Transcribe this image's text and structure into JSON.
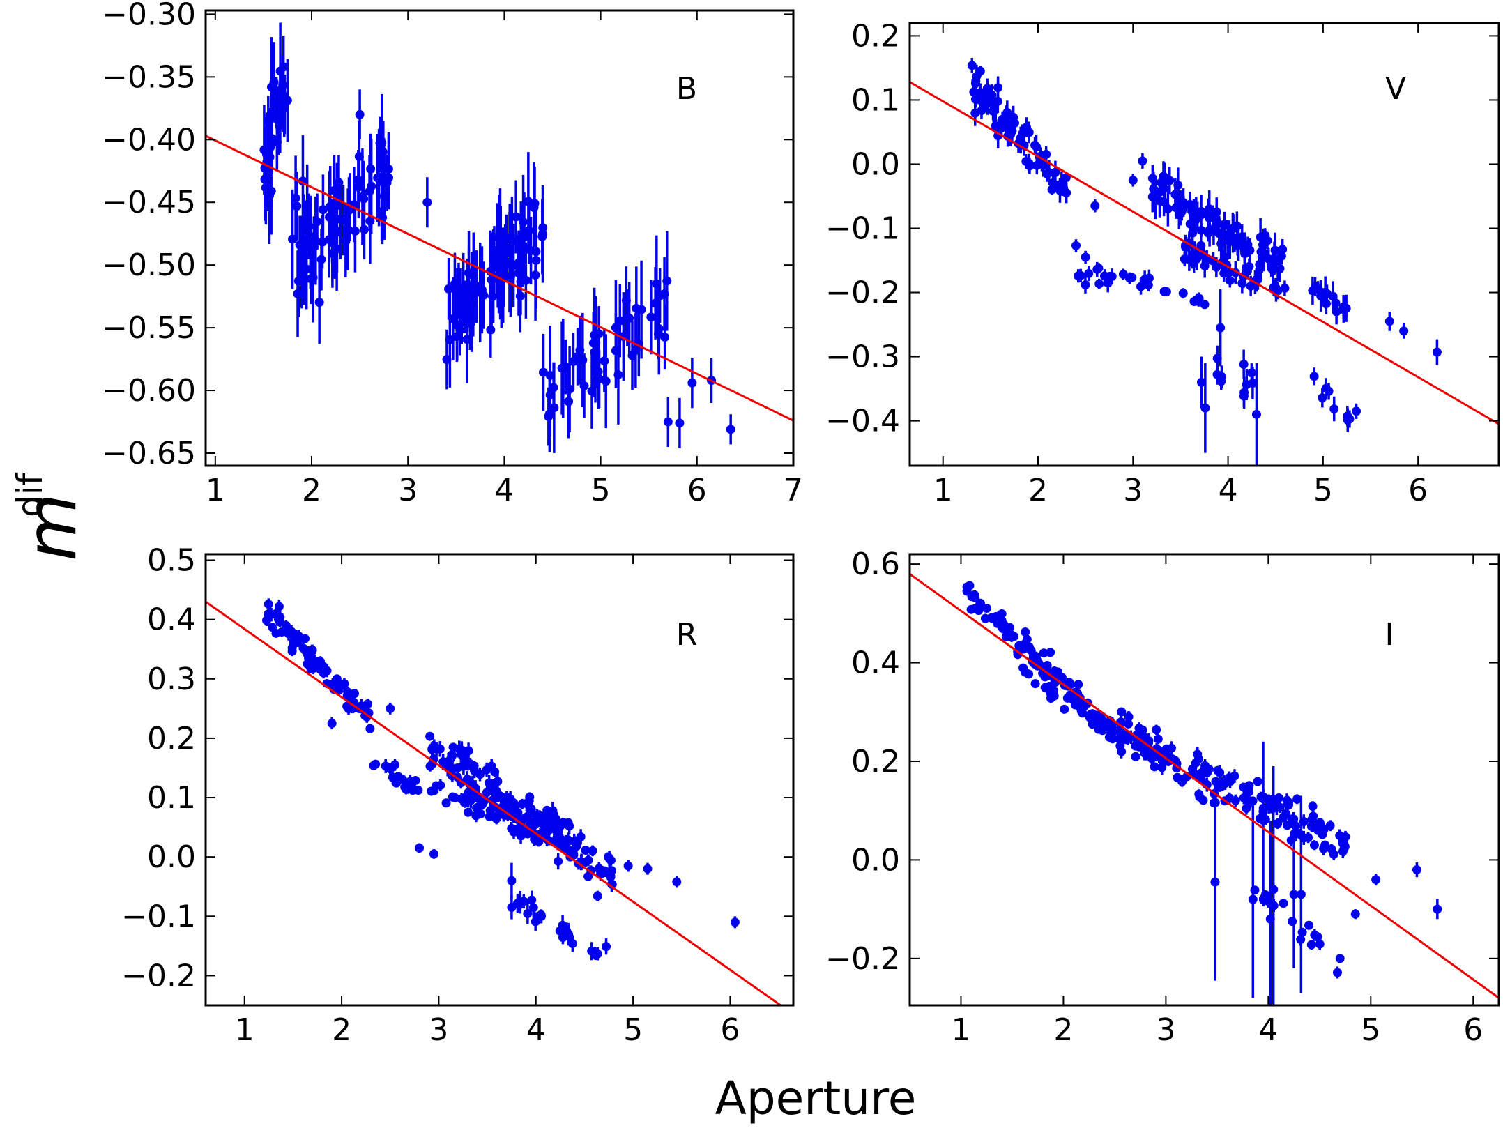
{
  "figure": {
    "xlabel": "Aperture",
    "ylabel": "m",
    "ylabel_superscript": "dif"
  },
  "colors": {
    "points": "#0000ee",
    "fit": "#ee0000",
    "axes": "#000000",
    "background": "#ffffff"
  },
  "chart_data": [
    {
      "type": "scatter",
      "band": "B",
      "xlim": [
        0.9,
        7.0
      ],
      "ylim": [
        -0.66,
        -0.297
      ],
      "xticks": [
        1,
        2,
        3,
        4,
        5,
        6,
        7
      ],
      "xtick_labels": [
        "1",
        "2",
        "3",
        "4",
        "5",
        "6",
        "7"
      ],
      "yticks": [
        -0.65,
        -0.6,
        -0.55,
        -0.5,
        -0.45,
        -0.4,
        -0.35,
        -0.3
      ],
      "ytick_labels": [
        "−0.65",
        "−0.60",
        "−0.55",
        "−0.50",
        "−0.45",
        "−0.40",
        "−0.35",
        "−0.30"
      ],
      "fit": {
        "x": [
          0.9,
          7.0
        ],
        "y": [
          -0.397,
          -0.624
        ]
      },
      "clusters": [
        {
          "x": [
            1.5,
            1.75
          ],
          "y": [
            -0.43,
            -0.34
          ],
          "n": 28,
          "err": [
            0.02,
            0.04
          ],
          "spread": 0.03
        },
        {
          "x": [
            1.8,
            2.8
          ],
          "y": [
            -0.5,
            -0.43
          ],
          "n": 70,
          "err": [
            0.02,
            0.04
          ],
          "spread": 0.03
        },
        {
          "x": [
            3.4,
            4.4
          ],
          "y": [
            -0.55,
            -0.47
          ],
          "n": 80,
          "err": [
            0.02,
            0.04
          ],
          "spread": 0.03
        },
        {
          "x": [
            4.4,
            5.7
          ],
          "y": [
            -0.6,
            -0.53
          ],
          "n": 50,
          "err": [
            0.02,
            0.04
          ],
          "spread": 0.025
        }
      ],
      "points": [
        {
          "x": 3.2,
          "y": -0.45,
          "err": 0.02
        },
        {
          "x": 2.5,
          "y": -0.38,
          "err": 0.02
        },
        {
          "x": 1.55,
          "y": -0.385,
          "err": 0.02
        },
        {
          "x": 6.35,
          "y": -0.631,
          "err": 0.012
        },
        {
          "x": 6.15,
          "y": -0.592,
          "err": 0.018
        },
        {
          "x": 5.95,
          "y": -0.594,
          "err": 0.02
        },
        {
          "x": 5.82,
          "y": -0.626,
          "err": 0.02
        },
        {
          "x": 5.7,
          "y": -0.625,
          "err": 0.02
        },
        {
          "x": 5.6,
          "y": -0.555,
          "err": 0.02
        }
      ]
    },
    {
      "type": "scatter",
      "band": "V",
      "xlim": [
        0.65,
        6.85
      ],
      "ylim": [
        -0.47,
        0.22
      ],
      "xticks": [
        1,
        2,
        3,
        4,
        5,
        6
      ],
      "xtick_labels": [
        "1",
        "2",
        "3",
        "4",
        "5",
        "6"
      ],
      "yticks": [
        -0.4,
        -0.3,
        -0.2,
        -0.1,
        0.0,
        0.1,
        0.2
      ],
      "ytick_labels": [
        "−0.4",
        "−0.3",
        "−0.2",
        "−0.1",
        "0.0",
        "0.1",
        "0.2"
      ],
      "fit": {
        "x": [
          0.65,
          6.85
        ],
        "y": [
          0.128,
          -0.405
        ]
      },
      "clusters": [
        {
          "x": [
            1.3,
            2.3
          ],
          "y": [
            0.13,
            -0.04
          ],
          "n": 70,
          "err": [
            0.008,
            0.02
          ],
          "spread": 0.025
        },
        {
          "x": [
            3.2,
            4.6
          ],
          "y": [
            -0.04,
            -0.16
          ],
          "n": 90,
          "err": [
            0.01,
            0.03
          ],
          "spread": 0.03
        },
        {
          "x": [
            3.5,
            4.6
          ],
          "y": [
            -0.13,
            -0.2
          ],
          "n": 40,
          "err": [
            0.01,
            0.02
          ],
          "spread": 0.02
        },
        {
          "x": [
            2.4,
            3.2
          ],
          "y": [
            -0.17,
            -0.19
          ],
          "n": 18,
          "err": [
            0.005,
            0.015
          ],
          "spread": 0.015
        },
        {
          "x": [
            3.3,
            3.9
          ],
          "y": [
            -0.2,
            -0.22
          ],
          "n": 8,
          "err": [
            0.005,
            0.01
          ],
          "spread": 0.01
        },
        {
          "x": [
            3.8,
            4.3
          ],
          "y": [
            -0.3,
            -0.35
          ],
          "n": 10,
          "err": [
            0.01,
            0.03
          ],
          "spread": 0.025
        },
        {
          "x": [
            4.8,
            5.3
          ],
          "y": [
            -0.18,
            -0.23
          ],
          "n": 14,
          "err": [
            0.01,
            0.025
          ],
          "spread": 0.02
        },
        {
          "x": [
            4.9,
            5.3
          ],
          "y": [
            -0.35,
            -0.39
          ],
          "n": 8,
          "err": [
            0.01,
            0.02
          ],
          "spread": 0.015
        }
      ],
      "points": [
        {
          "x": 3.72,
          "y": -0.34,
          "err": 0.04
        },
        {
          "x": 3.76,
          "y": -0.38,
          "err": 0.07
        },
        {
          "x": 3.92,
          "y": -0.255,
          "err": 0.06
        },
        {
          "x": 4.3,
          "y": -0.39,
          "err": 0.08
        },
        {
          "x": 5.35,
          "y": -0.385,
          "err": 0.012
        },
        {
          "x": 5.7,
          "y": -0.245,
          "err": 0.015
        },
        {
          "x": 5.85,
          "y": -0.26,
          "err": 0.012
        },
        {
          "x": 6.2,
          "y": -0.293,
          "err": 0.02
        },
        {
          "x": 2.4,
          "y": -0.127,
          "err": 0.01
        },
        {
          "x": 2.5,
          "y": -0.145,
          "err": 0.01
        },
        {
          "x": 3.0,
          "y": -0.025,
          "err": 0.01
        },
        {
          "x": 2.6,
          "y": -0.065,
          "err": 0.01
        },
        {
          "x": 3.1,
          "y": 0.005,
          "err": 0.012
        }
      ]
    },
    {
      "type": "scatter",
      "band": "R",
      "xlim": [
        0.6,
        6.65
      ],
      "ylim": [
        -0.25,
        0.51
      ],
      "xticks": [
        1,
        2,
        3,
        4,
        5,
        6
      ],
      "xtick_labels": [
        "1",
        "2",
        "3",
        "4",
        "5",
        "6"
      ],
      "yticks": [
        -0.2,
        -0.1,
        0.0,
        0.1,
        0.2,
        0.3,
        0.4,
        0.5
      ],
      "ytick_labels": [
        "−0.2",
        "−0.1",
        "0.0",
        "0.1",
        "0.2",
        "0.3",
        "0.4",
        "0.5"
      ],
      "fit": {
        "x": [
          0.6,
          6.65
        ],
        "y": [
          0.43,
          -0.265
        ]
      },
      "clusters": [
        {
          "x": [
            1.2,
            2.3
          ],
          "y": [
            0.42,
            0.23
          ],
          "n": 75,
          "err": [
            0.005,
            0.012
          ],
          "spread": 0.02
        },
        {
          "x": [
            2.3,
            2.8
          ],
          "y": [
            0.16,
            0.11
          ],
          "n": 18,
          "err": [
            0.005,
            0.012
          ],
          "spread": 0.02
        },
        {
          "x": [
            2.9,
            4.8
          ],
          "y": [
            0.19,
            -0.03
          ],
          "n": 150,
          "err": [
            0.006,
            0.015
          ],
          "spread": 0.03
        },
        {
          "x": [
            2.9,
            4.3
          ],
          "y": [
            0.12,
            0.02
          ],
          "n": 50,
          "err": [
            0.005,
            0.012
          ],
          "spread": 0.02
        },
        {
          "x": [
            3.8,
            4.8
          ],
          "y": [
            -0.07,
            -0.175
          ],
          "n": 22,
          "err": [
            0.008,
            0.02
          ],
          "spread": 0.015
        }
      ],
      "points": [
        {
          "x": 2.8,
          "y": 0.015,
          "err": 0.008
        },
        {
          "x": 2.95,
          "y": 0.005,
          "err": 0.008
        },
        {
          "x": 5.45,
          "y": -0.042,
          "err": 0.01
        },
        {
          "x": 6.05,
          "y": -0.11,
          "err": 0.01
        },
        {
          "x": 5.15,
          "y": -0.02,
          "err": 0.01
        },
        {
          "x": 4.95,
          "y": -0.015,
          "err": 0.01
        },
        {
          "x": 2.5,
          "y": 0.25,
          "err": 0.01
        },
        {
          "x": 1.9,
          "y": 0.225,
          "err": 0.01
        },
        {
          "x": 3.75,
          "y": -0.04,
          "err": 0.03
        },
        {
          "x": 3.75,
          "y": -0.085,
          "err": 0.02
        }
      ]
    },
    {
      "type": "scatter",
      "band": "I",
      "xlim": [
        0.5,
        6.25
      ],
      "ylim": [
        -0.295,
        0.62
      ],
      "xticks": [
        1,
        2,
        3,
        4,
        5,
        6
      ],
      "xtick_labels": [
        "1",
        "2",
        "3",
        "4",
        "5",
        "6"
      ],
      "yticks": [
        -0.2,
        0.0,
        0.2,
        0.4,
        0.6
      ],
      "ytick_labels": [
        "−0.2",
        "0.0",
        "0.2",
        "0.4",
        "0.6"
      ],
      "fit": {
        "x": [
          0.5,
          6.25
        ],
        "y": [
          0.58,
          -0.28
        ]
      },
      "clusters": [
        {
          "x": [
            1.05,
            2.5
          ],
          "y": [
            0.55,
            0.25
          ],
          "n": 110,
          "err": [
            0.004,
            0.01
          ],
          "spread": 0.02
        },
        {
          "x": [
            1.6,
            3.5
          ],
          "y": [
            0.38,
            0.12
          ],
          "n": 40,
          "err": [
            0.004,
            0.01
          ],
          "spread": 0.02
        },
        {
          "x": [
            2.5,
            4.8
          ],
          "y": [
            0.27,
            0.02
          ],
          "n": 150,
          "err": [
            0.006,
            0.015
          ],
          "spread": 0.03
        },
        {
          "x": [
            3.8,
            4.7
          ],
          "y": [
            -0.06,
            -0.2
          ],
          "n": 16,
          "err": [
            0.006,
            0.015
          ],
          "spread": 0.02
        }
      ],
      "points": [
        {
          "x": 3.48,
          "y": -0.045,
          "err": 0.2
        },
        {
          "x": 3.85,
          "y": -0.08,
          "err": 0.2
        },
        {
          "x": 4.02,
          "y": -0.12,
          "err": 0.2
        },
        {
          "x": 4.05,
          "y": -0.06,
          "err": 0.25
        },
        {
          "x": 4.25,
          "y": -0.07,
          "err": 0.15
        },
        {
          "x": 4.32,
          "y": -0.07,
          "err": 0.2
        },
        {
          "x": 3.95,
          "y": 0.08,
          "err": 0.16
        },
        {
          "x": 5.45,
          "y": -0.02,
          "err": 0.015
        },
        {
          "x": 5.65,
          "y": -0.1,
          "err": 0.02
        },
        {
          "x": 5.05,
          "y": -0.04,
          "err": 0.012
        },
        {
          "x": 4.85,
          "y": -0.11,
          "err": 0.01
        },
        {
          "x": 4.7,
          "y": -0.2,
          "err": 0.008
        }
      ]
    }
  ]
}
